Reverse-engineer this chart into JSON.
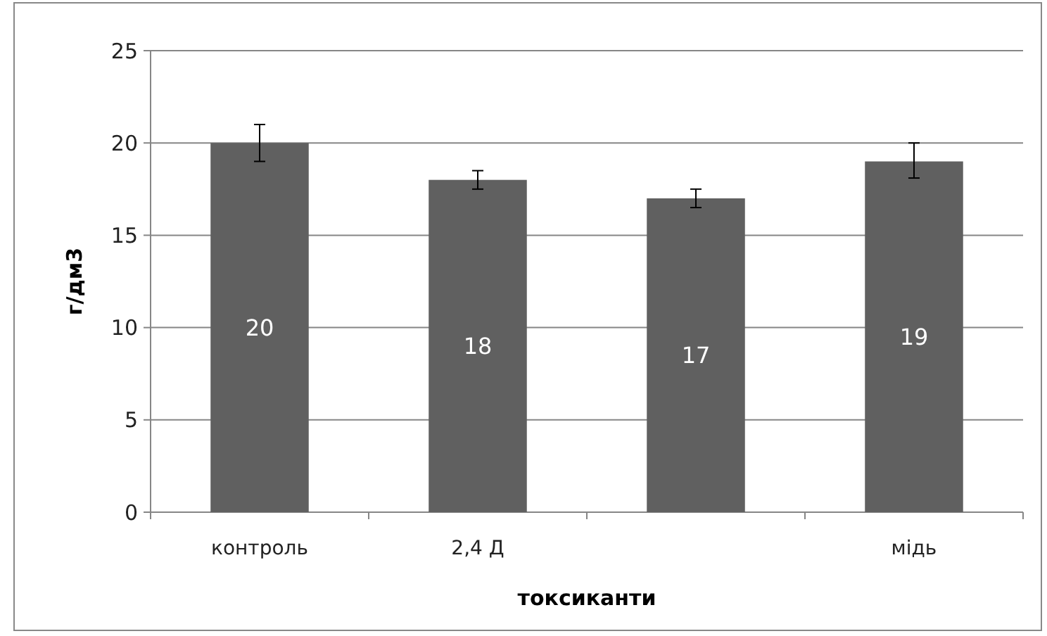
{
  "chart_data": {
    "type": "bar",
    "xlabel": "токсиканти",
    "ylabel": "г/дм3",
    "categories": [
      "контроль",
      "2,4 Д",
      null,
      "мідь"
    ],
    "values": [
      20,
      18,
      17,
      19
    ],
    "errors": [
      1,
      0.5,
      0.5,
      [
        18.1,
        20
      ]
    ],
    "color": "#606060",
    "data_labels": true,
    "ylim": [
      0,
      25
    ],
    "yticks": [
      0,
      5,
      10,
      15,
      20,
      25
    ],
    "grid": "y"
  }
}
